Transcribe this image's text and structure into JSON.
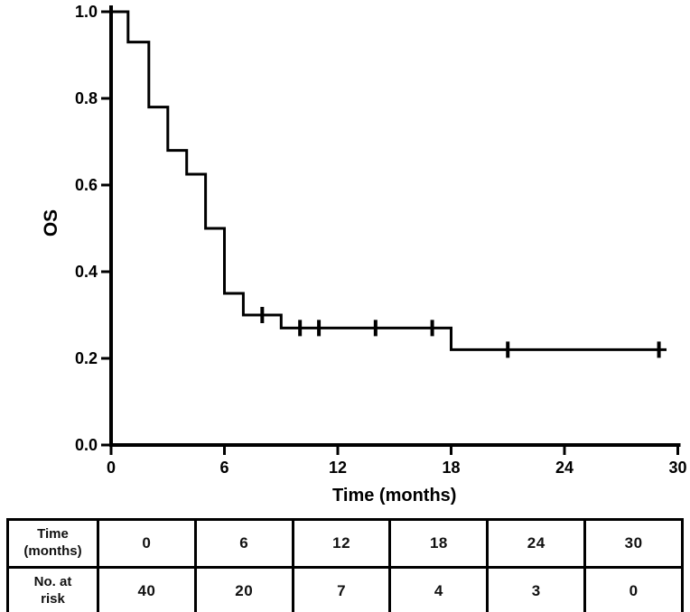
{
  "page": {
    "background_color": "#ffffff",
    "foreground_color": "#000000"
  },
  "chart_data": {
    "type": "line",
    "chart_kind": "kaplan-meier-survival-curve",
    "title": "",
    "xlabel": "Time (months)",
    "ylabel": "OS",
    "xlim": [
      0,
      30
    ],
    "ylim": [
      0.0,
      1.0
    ],
    "xtick_values": [
      0,
      6,
      12,
      18,
      24,
      30
    ],
    "xtick_labels": [
      "0",
      "6",
      "12",
      "18",
      "24",
      "30"
    ],
    "ytick_values": [
      1.0,
      0.8,
      0.6,
      0.4,
      0.2,
      0.0
    ],
    "ytick_labels": [
      "1.0",
      "0.8",
      "0.6",
      "0.4",
      "0.2",
      "0.0"
    ],
    "grid": false,
    "legend": null,
    "line_color": "#000000",
    "series": [
      {
        "name": "OS",
        "step_points": [
          [
            0,
            1.0
          ],
          [
            0.9,
            1.0
          ],
          [
            0.9,
            0.93
          ],
          [
            2,
            0.93
          ],
          [
            2,
            0.78
          ],
          [
            3,
            0.78
          ],
          [
            3,
            0.68
          ],
          [
            4,
            0.68
          ],
          [
            4,
            0.625
          ],
          [
            5,
            0.625
          ],
          [
            5,
            0.5
          ],
          [
            6,
            0.5
          ],
          [
            6,
            0.35
          ],
          [
            7,
            0.35
          ],
          [
            7,
            0.3
          ],
          [
            9,
            0.3
          ],
          [
            9,
            0.27
          ],
          [
            18,
            0.27
          ],
          [
            18,
            0.22
          ],
          [
            29.4,
            0.22
          ]
        ],
        "censor_marks": [
          [
            8,
            0.3
          ],
          [
            10,
            0.27
          ],
          [
            11,
            0.27
          ],
          [
            14,
            0.27
          ],
          [
            17,
            0.27
          ],
          [
            21,
            0.22
          ],
          [
            29,
            0.22
          ]
        ]
      }
    ]
  },
  "risk_table": {
    "rows": [
      {
        "label_lines": [
          "Time",
          "(months)"
        ],
        "values": [
          "0",
          "6",
          "12",
          "18",
          "24",
          "30"
        ]
      },
      {
        "label_lines": [
          "No. at",
          "risk"
        ],
        "values": [
          "40",
          "20",
          "7",
          "4",
          "3",
          "0"
        ]
      }
    ]
  }
}
